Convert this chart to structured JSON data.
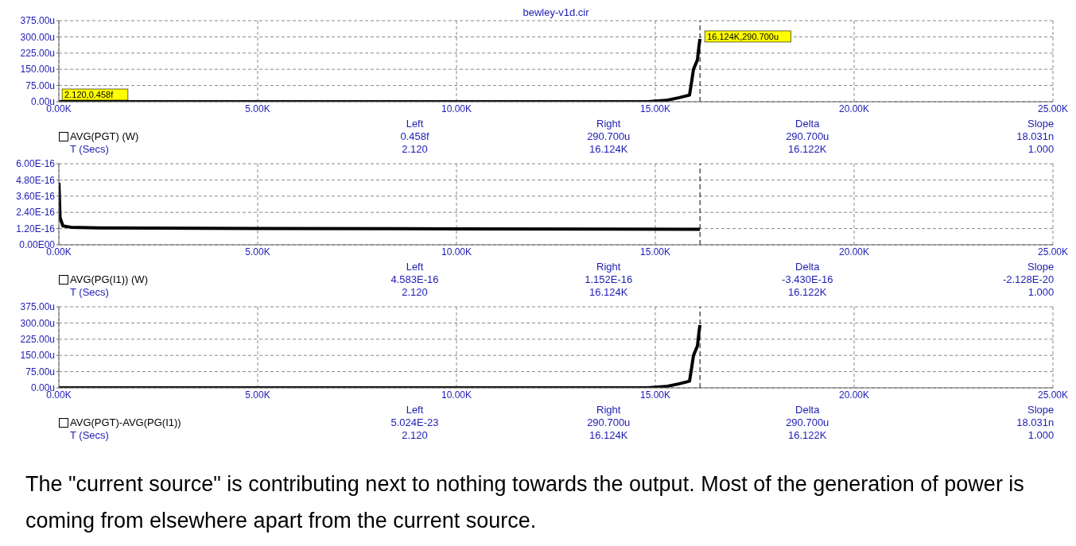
{
  "chart_data": [
    {
      "type": "line",
      "title": "bewley-v1d.cir",
      "xlabel": "T (Secs)",
      "series": [
        {
          "name": "AVG(PGT) (W)",
          "color": "#000000",
          "x": [
            2.12,
            5000,
            10000,
            14800,
            15265,
            15600,
            15860,
            15920,
            15960,
            16060,
            16100,
            16124
          ],
          "values": [
            0,
            0,
            0,
            0,
            6,
            19,
            31,
            100,
            150,
            194,
            260,
            290.7
          ]
        }
      ],
      "xlim": [
        0,
        25000
      ],
      "xticks": [
        {
          "value": 0,
          "label": "0.00K"
        },
        {
          "value": 5000,
          "label": "5.00K"
        },
        {
          "value": 10000,
          "label": "10.00K"
        },
        {
          "value": 15000,
          "label": "15.00K"
        },
        {
          "value": 20000,
          "label": "20.00K"
        },
        {
          "value": 25000,
          "label": "25.00K"
        }
      ],
      "ylim": [
        0,
        375
      ],
      "yticks": [
        {
          "value": 0,
          "label": "0.00u"
        },
        {
          "value": 75,
          "label": "75.00u"
        },
        {
          "value": 150,
          "label": "150.00u"
        },
        {
          "value": 225,
          "label": "225.00u"
        },
        {
          "value": 300,
          "label": "300.00u"
        },
        {
          "value": 375,
          "label": "375.00u"
        }
      ],
      "grid": true,
      "legend": "bottom left",
      "line_style": "solid",
      "ref_lines": [
        {
          "axis": "x",
          "value": 16124,
          "line_style": "dashed",
          "color": "#000000"
        }
      ],
      "annotations": [
        "Left",
        "Right",
        "Delta",
        "Slope",
        "0.458f",
        "290.700u",
        "290.700u",
        "18.031n",
        "2.120",
        "16.124K",
        "16.122K",
        "1.000",
        {
          "text": "2.120,0.458f",
          "x": 2.12,
          "y": 0
        },
        {
          "text": "16.124K,290.700u",
          "x": 16124,
          "y": 290.7
        }
      ]
    },
    {
      "type": "line",
      "xlabel": "T (Secs)",
      "series": [
        {
          "name": "AVG(PG(I1)) (W)",
          "color": "#000000",
          "x": [
            2.12,
            30,
            100,
            300,
            1000,
            5000,
            10000,
            16124
          ],
          "values": [
            4.583e-16,
            2e-16,
            1.4e-16,
            1.3e-16,
            1.25e-16,
            1.2e-16,
            1.18e-16,
            1.152e-16
          ]
        }
      ],
      "xlim": [
        0,
        25000
      ],
      "xticks": [
        {
          "value": 0,
          "label": "0.00K"
        },
        {
          "value": 5000,
          "label": "5.00K"
        },
        {
          "value": 10000,
          "label": "10.00K"
        },
        {
          "value": 15000,
          "label": "15.00K"
        },
        {
          "value": 20000,
          "label": "20.00K"
        },
        {
          "value": 25000,
          "label": "25.00K"
        }
      ],
      "ylim": [
        0,
        6e-16
      ],
      "yticks": [
        {
          "value": 0,
          "label": "0.00E00"
        },
        {
          "value": 1.2e-16,
          "label": "1.20E-16"
        },
        {
          "value": 2.4e-16,
          "label": "2.40E-16"
        },
        {
          "value": 3.6e-16,
          "label": "3.60E-16"
        },
        {
          "value": 4.8e-16,
          "label": "4.80E-16"
        },
        {
          "value": 6e-16,
          "label": "6.00E-16"
        }
      ],
      "grid": true,
      "legend": "bottom left",
      "line_style": "solid",
      "ref_lines": [
        {
          "axis": "x",
          "value": 16124,
          "line_style": "dashed",
          "color": "#000000"
        }
      ],
      "annotations": [
        "Left",
        "Right",
        "Delta",
        "Slope",
        "4.583E-16",
        "1.152E-16",
        "-3.430E-16",
        "-2.128E-20",
        "2.120",
        "16.124K",
        "16.122K",
        "1.000"
      ]
    },
    {
      "type": "line",
      "xlabel": "T (Secs)",
      "series": [
        {
          "name": "AVG(PGT)-AVG(PG(I1))",
          "color": "#000000",
          "x": [
            2.12,
            5000,
            10000,
            14800,
            15265,
            15600,
            15860,
            15920,
            15960,
            16060,
            16100,
            16124
          ],
          "values": [
            0,
            0,
            0,
            0,
            6,
            19,
            31,
            100,
            150,
            194,
            260,
            290.7
          ]
        }
      ],
      "xlim": [
        0,
        25000
      ],
      "xticks": [
        {
          "value": 0,
          "label": "0.00K"
        },
        {
          "value": 5000,
          "label": "5.00K"
        },
        {
          "value": 10000,
          "label": "10.00K"
        },
        {
          "value": 15000,
          "label": "15.00K"
        },
        {
          "value": 20000,
          "label": "20.00K"
        },
        {
          "value": 25000,
          "label": "25.00K"
        }
      ],
      "ylim": [
        0,
        375
      ],
      "yticks": [
        {
          "value": 0,
          "label": "0.00u"
        },
        {
          "value": 75,
          "label": "75.00u"
        },
        {
          "value": 150,
          "label": "150.00u"
        },
        {
          "value": 225,
          "label": "225.00u"
        },
        {
          "value": 300,
          "label": "300.00u"
        },
        {
          "value": 375,
          "label": "375.00u"
        }
      ],
      "grid": true,
      "legend": "bottom left",
      "line_style": "solid",
      "ref_lines": [
        {
          "axis": "x",
          "value": 16124,
          "line_style": "dashed",
          "color": "#000000"
        }
      ],
      "annotations": [
        "Left",
        "Right",
        "Delta",
        "Slope",
        "5.024E-23",
        "290.700u",
        "290.700u",
        "18.031n",
        "2.120",
        "16.124K",
        "16.122K",
        "1.000"
      ]
    },
    {
      "type": "other",
      "annotations": [
        "The \"current source\" is contributing next to nothing towards the output. Most of the generation of power is coming from elsewhere apart from the current source."
      ]
    }
  ]
}
